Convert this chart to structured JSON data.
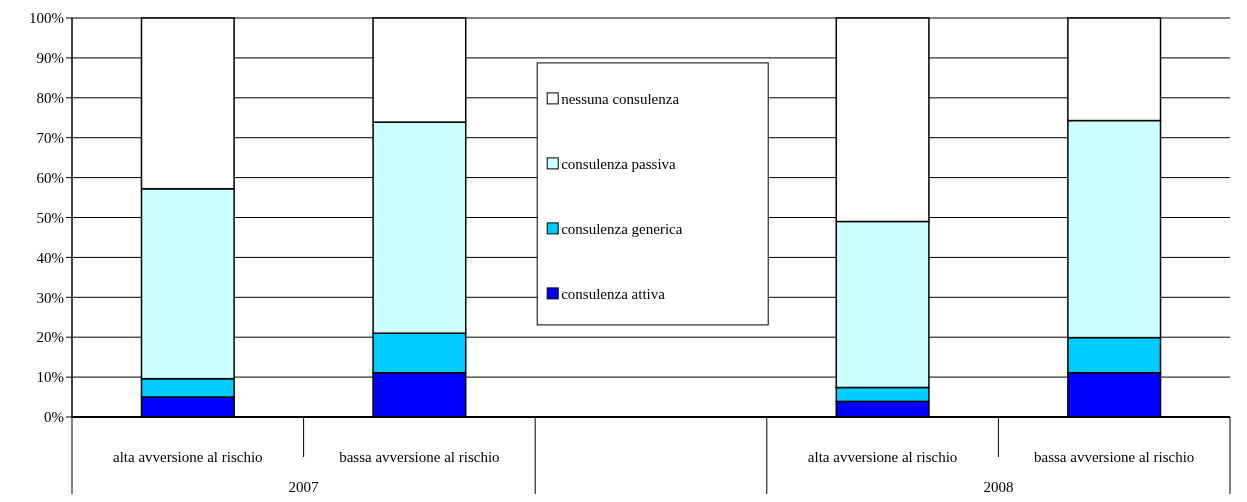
{
  "chart_data": {
    "type": "bar",
    "stacked": true,
    "categories": [
      "alta avversione al rischio",
      "bassa avversione al rischio",
      null,
      "alta avversione al rischio",
      "bassa avversione al rischio"
    ],
    "series": [
      {
        "name": "consulenza attiva",
        "color": "#0000ff",
        "values": [
          5.0,
          11.1,
          null,
          3.9,
          11.1
        ]
      },
      {
        "name": "consulenza generica",
        "color": "#00ccff",
        "values": [
          4.6,
          9.9,
          null,
          3.5,
          8.8
        ]
      },
      {
        "name": "consulenza passiva",
        "color": "#ccffff",
        "values": [
          47.6,
          52.9,
          null,
          41.6,
          54.4
        ]
      },
      {
        "name": "nessuna consulenza",
        "color": "#ffffff",
        "values": [
          42.8,
          26.1,
          null,
          51.0,
          25.7
        ]
      }
    ],
    "ylim": [
      0,
      100
    ],
    "yticks": [
      {
        "value": 0,
        "label": "0%"
      },
      {
        "value": 10,
        "label": "10%"
      },
      {
        "value": 20,
        "label": "20%"
      },
      {
        "value": 30,
        "label": "30%"
      },
      {
        "value": 40,
        "label": "40%"
      },
      {
        "value": 50,
        "label": "50%"
      },
      {
        "value": 60,
        "label": "60%"
      },
      {
        "value": 70,
        "label": "70%"
      },
      {
        "value": 80,
        "label": "80%"
      },
      {
        "value": 90,
        "label": "90%"
      },
      {
        "value": 100,
        "label": "100%"
      }
    ],
    "grid": "y",
    "legend": "top",
    "annotations": [
      "2007",
      "2008"
    ]
  }
}
